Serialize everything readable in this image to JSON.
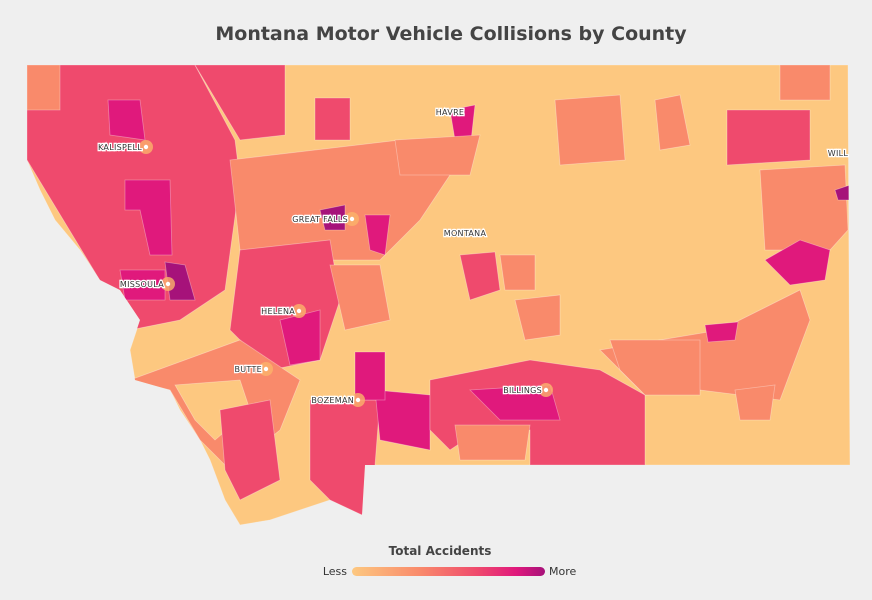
{
  "title": "Montana Motor Vehicle Collisions by County",
  "places": [
    "KALISPELL",
    "GREAT FALLS",
    "MISSOULA",
    "HELENA",
    "BUTTE",
    "BOZEMAN",
    "BILLINGS",
    "HAVRE",
    "MONTANA",
    "WILL"
  ],
  "legend": {
    "title": "Total Accidents",
    "low": "Less",
    "high": "More"
  }
}
